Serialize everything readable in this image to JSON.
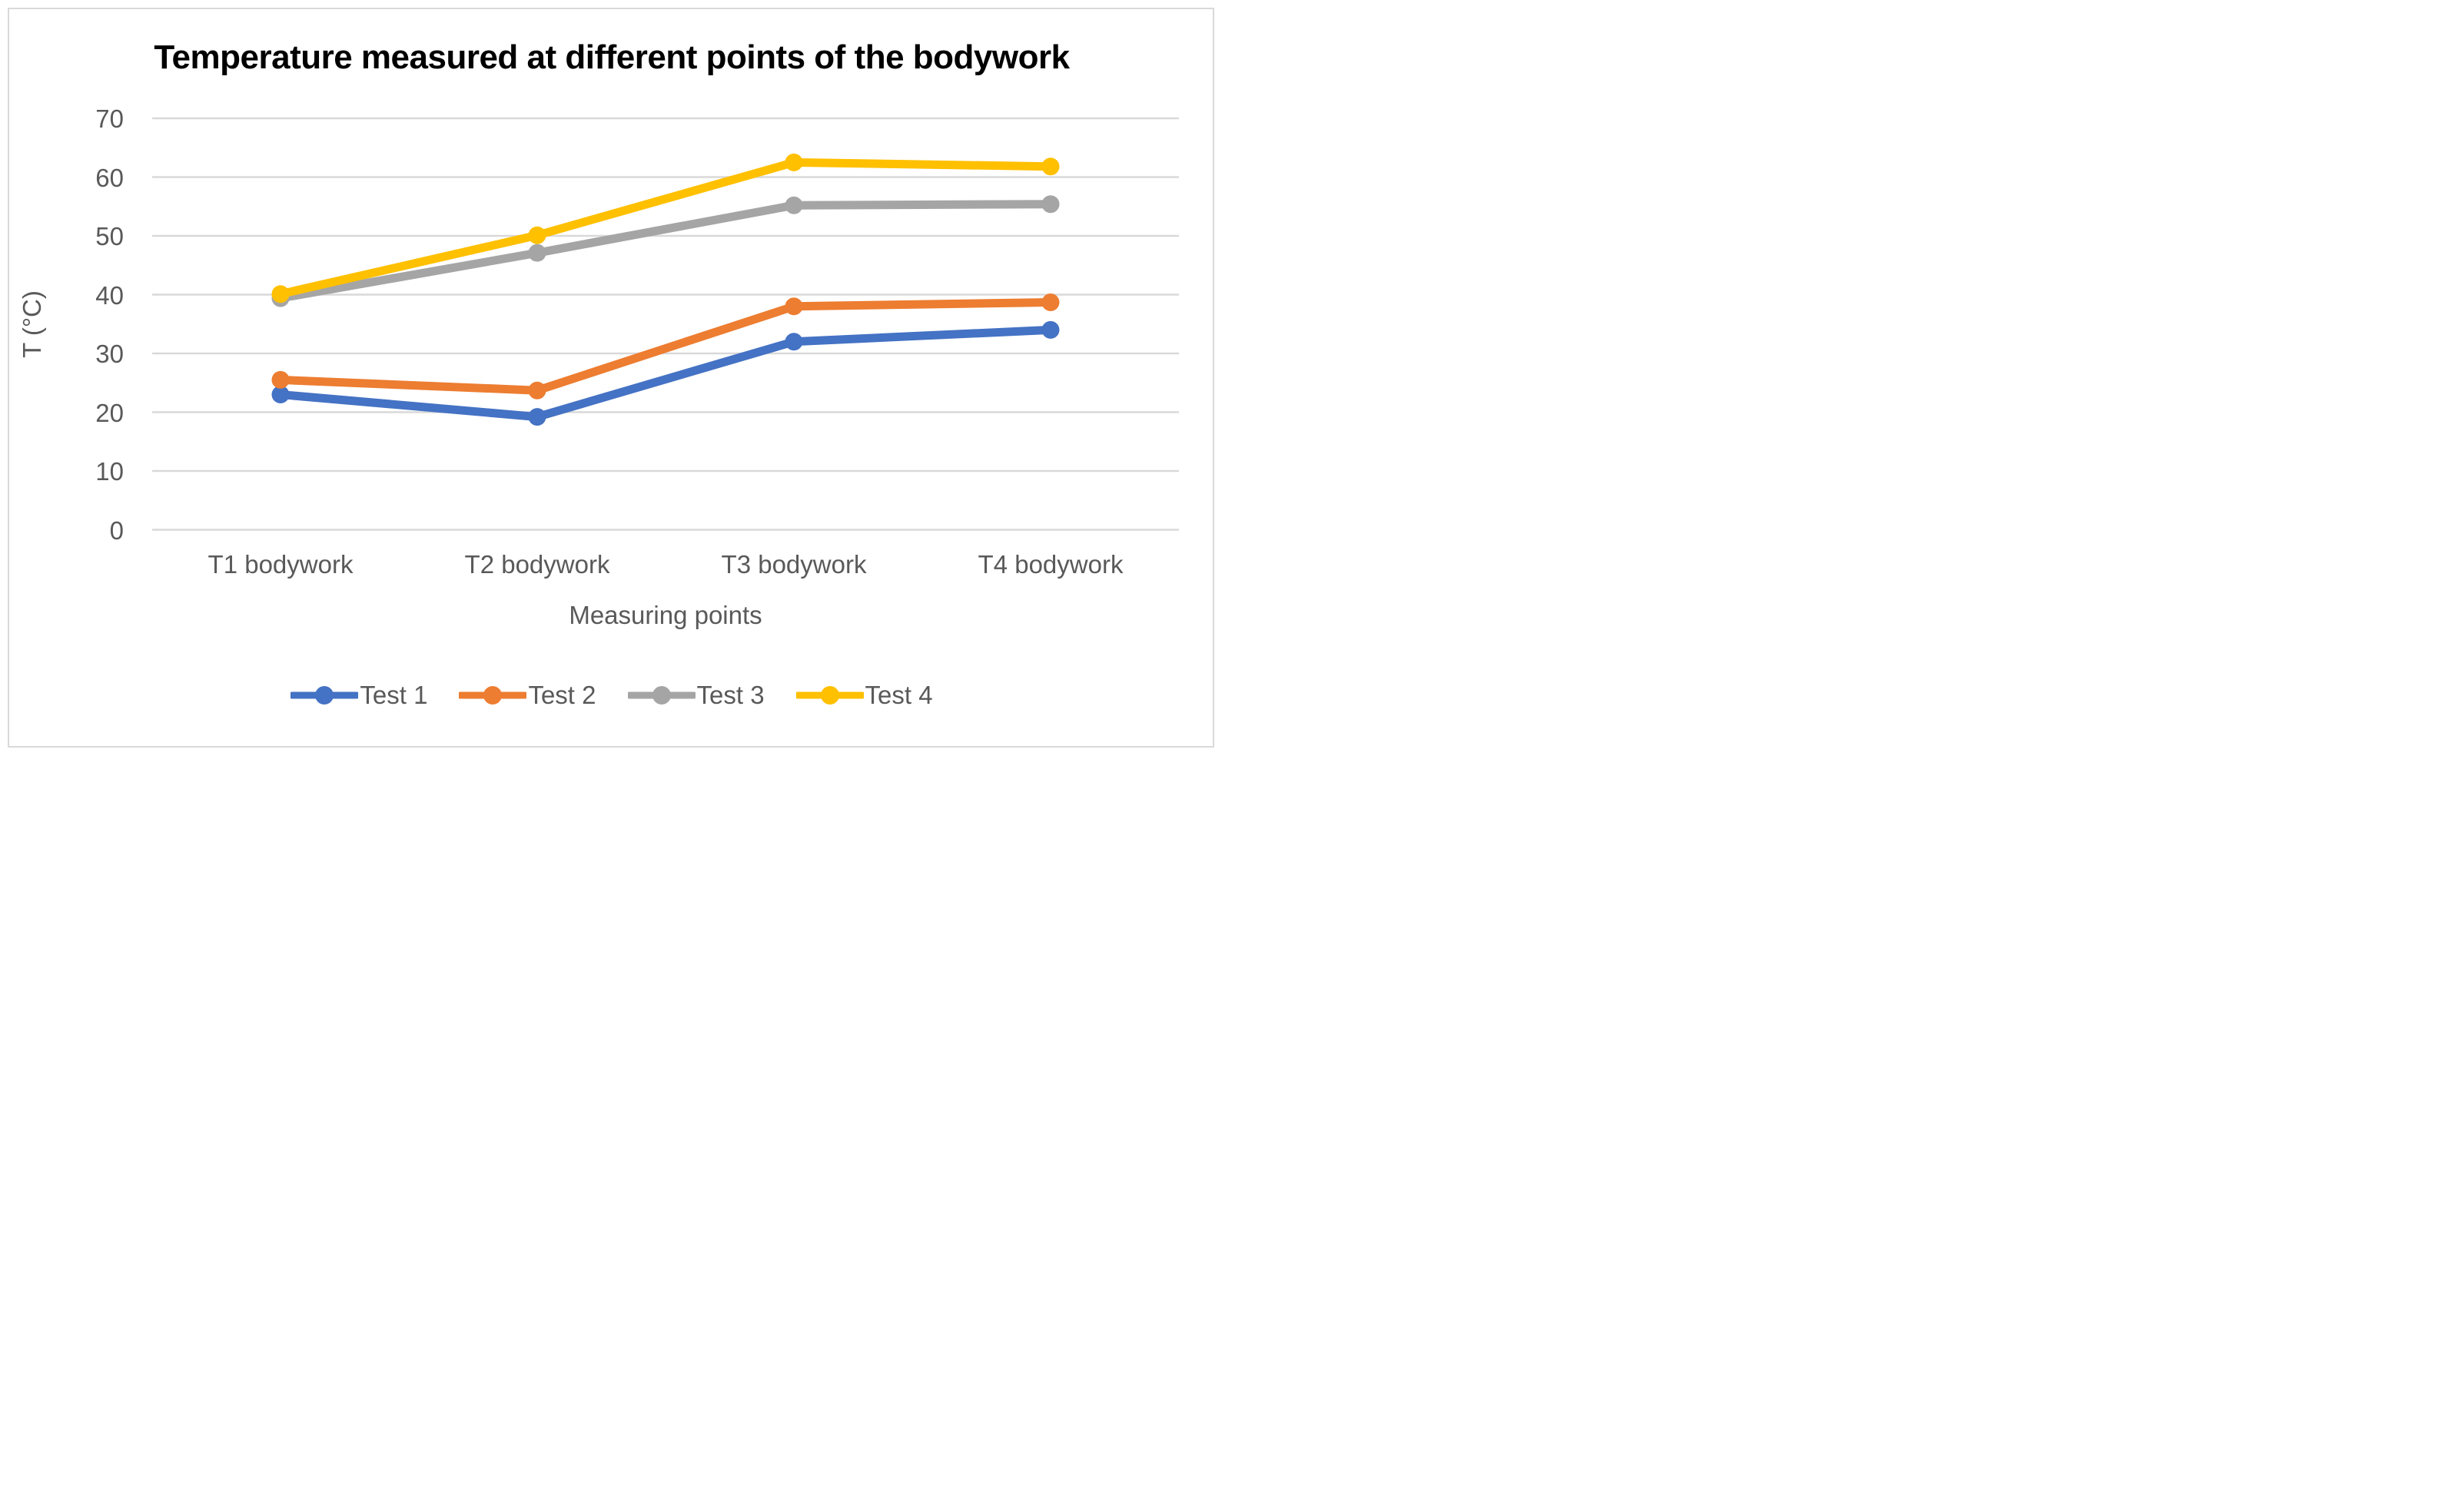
{
  "chart_data": {
    "type": "line",
    "title": "Temperature measured at different points of the bodywork",
    "xlabel": "Measuring points",
    "ylabel": "T (°C)",
    "categories": [
      "T1 bodywork",
      "T2 bodywork",
      "T3 bodywork",
      "T4 bodywork"
    ],
    "series": [
      {
        "name": "Test 1",
        "color": "#4472C4",
        "values": [
          23,
          19.2,
          32,
          34
        ]
      },
      {
        "name": "Test 2",
        "color": "#ED7D31",
        "values": [
          25.5,
          23.7,
          38,
          38.7
        ]
      },
      {
        "name": "Test 3",
        "color": "#A5A5A5",
        "values": [
          39.4,
          47.1,
          55.2,
          55.4
        ]
      },
      {
        "name": "Test 4",
        "color": "#FFC000",
        "values": [
          40.1,
          50.1,
          62.5,
          61.8
        ]
      }
    ],
    "yticks": [
      0,
      10,
      20,
      30,
      40,
      50,
      60,
      70
    ],
    "ylim": [
      0,
      70
    ],
    "grid": "horizontal",
    "legend_position": "bottom"
  },
  "colors": {
    "background": "#FFFFFF",
    "frame_border": "#D9D9D9",
    "gridline": "#D9D9D9",
    "tick_label": "#595959",
    "axis_title": "#595959",
    "title": "#000000"
  }
}
